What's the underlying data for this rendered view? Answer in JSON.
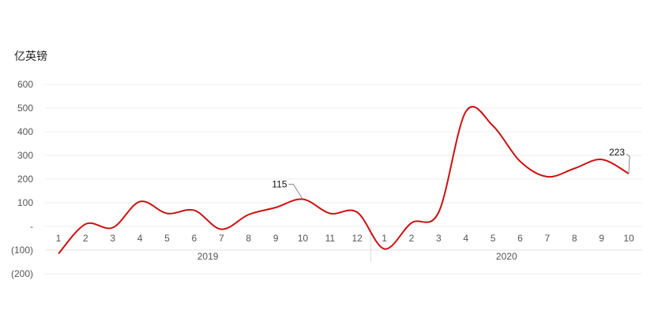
{
  "chart_data": {
    "type": "line",
    "unit_label": "亿英镑",
    "y_ticks": [
      {
        "value": 600,
        "label": "600"
      },
      {
        "value": 500,
        "label": "500"
      },
      {
        "value": 400,
        "label": "400"
      },
      {
        "value": 300,
        "label": "300"
      },
      {
        "value": 200,
        "label": "200"
      },
      {
        "value": 100,
        "label": "100"
      },
      {
        "value": 0,
        "label": "-"
      },
      {
        "value": -100,
        "label": "(100)"
      },
      {
        "value": -200,
        "label": "(200)"
      }
    ],
    "ylim": [
      -200,
      600
    ],
    "x": [
      "1",
      "2",
      "3",
      "4",
      "5",
      "6",
      "7",
      "8",
      "9",
      "10",
      "11",
      "12",
      "1",
      "2",
      "3",
      "4",
      "5",
      "6",
      "7",
      "8",
      "9",
      "10"
    ],
    "groups": [
      {
        "label": "2019",
        "count": 12
      },
      {
        "label": "2020",
        "count": 10
      }
    ],
    "series": [
      {
        "values": [
          -115,
          10,
          -5,
          105,
          55,
          68,
          -12,
          50,
          80,
          115,
          55,
          60,
          -95,
          15,
          60,
          485,
          425,
          275,
          210,
          245,
          283,
          223
        ]
      }
    ],
    "annotations": [
      {
        "index": 9,
        "value": 115,
        "label": "115"
      },
      {
        "index": 21,
        "value": 223,
        "label": "223"
      }
    ],
    "line_color": "#cc1111",
    "grid": true,
    "legend": "none"
  }
}
